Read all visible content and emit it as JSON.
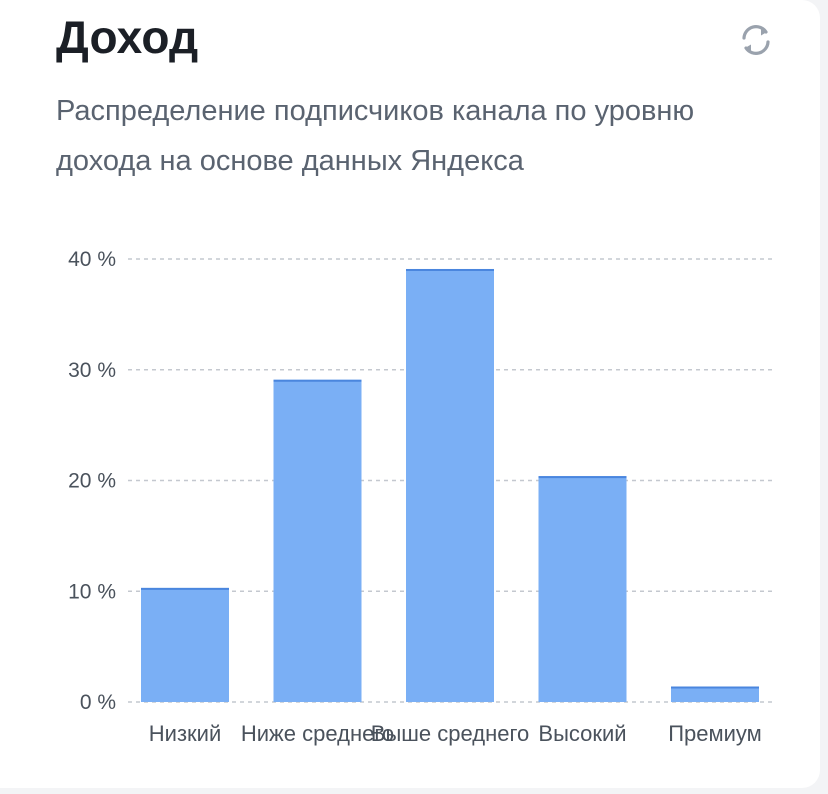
{
  "header": {
    "title": "Доход",
    "subtitle": "Распределение подписчиков канала по уровню дохода на основе данных Яндекса",
    "refresh_icon": "refresh-icon"
  },
  "colors": {
    "bar": "#7aaff5",
    "bar_top": "#4a86de",
    "grid": "#c4c8cf",
    "axis_text": "#4a525c"
  },
  "chart_data": {
    "type": "bar",
    "title": "Доход",
    "categories": [
      "Низкий",
      "Ниже среднего",
      "Выше среднего",
      "Высокий",
      "Премиум"
    ],
    "values": [
      10.3,
      29.1,
      39.1,
      20.4,
      1.4
    ],
    "yticks": [
      "0 %",
      "10 %",
      "20 %",
      "30 %",
      "40 %"
    ],
    "ylim": [
      0,
      40
    ],
    "grid": true,
    "unit": "%"
  }
}
